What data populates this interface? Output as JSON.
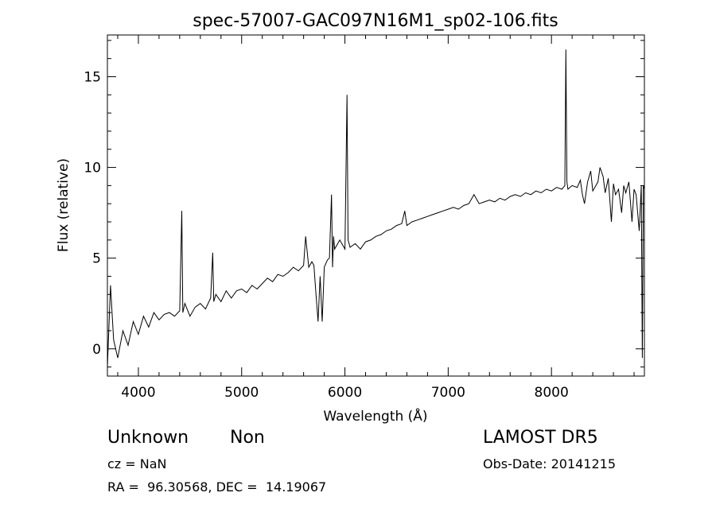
{
  "chart_data": {
    "type": "line",
    "title": "spec-57007-GAC097N16M1_sp02-106.fits",
    "xlabel": "Wavelength (Å)",
    "ylabel": "Flux (relative)",
    "xlim": [
      3700,
      8900
    ],
    "ylim": [
      -1.5,
      17.3
    ],
    "xticks": [
      4000,
      5000,
      6000,
      7000,
      8000
    ],
    "yticks": [
      0,
      5,
      10,
      15
    ],
    "grid": false,
    "series": [
      {
        "x": [
          3700,
          3730,
          3760,
          3800,
          3850,
          3900,
          3950,
          4000,
          4050,
          4100,
          4150,
          4200,
          4250,
          4300,
          4350,
          4400,
          4420,
          4430,
          4450,
          4500,
          4550,
          4600,
          4650,
          4700,
          4720,
          4730,
          4750,
          4800,
          4850,
          4900,
          4950,
          5000,
          5050,
          5100,
          5150,
          5200,
          5250,
          5300,
          5350,
          5400,
          5450,
          5500,
          5550,
          5600,
          5620,
          5650,
          5680,
          5700,
          5720,
          5740,
          5760,
          5780,
          5800,
          5830,
          5850,
          5870,
          5880,
          5890,
          5900,
          5950,
          6000,
          6020,
          6030,
          6040,
          6050,
          6100,
          6150,
          6200,
          6250,
          6300,
          6350,
          6400,
          6450,
          6500,
          6550,
          6580,
          6600,
          6650,
          6700,
          6750,
          6800,
          6850,
          6900,
          6950,
          7000,
          7050,
          7100,
          7150,
          7200,
          7250,
          7300,
          7350,
          7400,
          7450,
          7500,
          7550,
          7600,
          7650,
          7700,
          7750,
          7800,
          7850,
          7900,
          7950,
          8000,
          8050,
          8100,
          8130,
          8140,
          8150,
          8160,
          8200,
          8250,
          8280,
          8300,
          8320,
          8350,
          8380,
          8400,
          8450,
          8470,
          8500,
          8520,
          8550,
          8580,
          8600,
          8620,
          8650,
          8680,
          8700,
          8720,
          8750,
          8780,
          8800,
          8820,
          8850,
          8870,
          8880,
          8890,
          8900
        ],
        "y": [
          -1.0,
          3.5,
          0.5,
          -0.5,
          1.0,
          0.2,
          1.5,
          0.8,
          1.8,
          1.2,
          2.0,
          1.6,
          1.9,
          2.0,
          1.8,
          2.1,
          7.6,
          2.0,
          2.5,
          1.8,
          2.3,
          2.5,
          2.2,
          2.8,
          5.3,
          2.6,
          3.0,
          2.6,
          3.2,
          2.8,
          3.2,
          3.3,
          3.1,
          3.5,
          3.3,
          3.6,
          3.9,
          3.7,
          4.1,
          4.0,
          4.2,
          4.5,
          4.3,
          4.6,
          6.2,
          4.5,
          4.8,
          4.6,
          3.0,
          1.5,
          4.0,
          1.5,
          4.5,
          4.9,
          5.0,
          8.5,
          4.5,
          6.2,
          5.5,
          6.0,
          5.5,
          14.0,
          6.0,
          5.8,
          5.6,
          5.8,
          5.5,
          5.9,
          6.0,
          6.2,
          6.3,
          6.5,
          6.6,
          6.8,
          6.9,
          7.6,
          6.8,
          7.0,
          7.1,
          7.2,
          7.3,
          7.4,
          7.5,
          7.6,
          7.7,
          7.8,
          7.7,
          7.9,
          8.0,
          8.5,
          8.0,
          8.1,
          8.2,
          8.1,
          8.3,
          8.2,
          8.4,
          8.5,
          8.4,
          8.6,
          8.5,
          8.7,
          8.6,
          8.8,
          8.7,
          8.9,
          8.8,
          9.0,
          16.5,
          9.2,
          8.8,
          9.0,
          8.9,
          9.3,
          8.5,
          8.0,
          9.2,
          9.8,
          8.7,
          9.2,
          10.0,
          9.5,
          8.6,
          9.4,
          7.0,
          9.1,
          8.5,
          8.8,
          7.5,
          9.0,
          8.6,
          9.2,
          7.0,
          8.8,
          8.5,
          6.5,
          9.0,
          -0.5,
          9.0,
          8.8
        ]
      }
    ]
  },
  "info": {
    "object_class": "Unknown",
    "object_subclass": "Non",
    "survey": "LAMOST DR5",
    "cz": "cz = NaN",
    "obs_date": "Obs-Date: 20141215",
    "ra_dec": "RA =  96.30568, DEC =  14.19067"
  }
}
